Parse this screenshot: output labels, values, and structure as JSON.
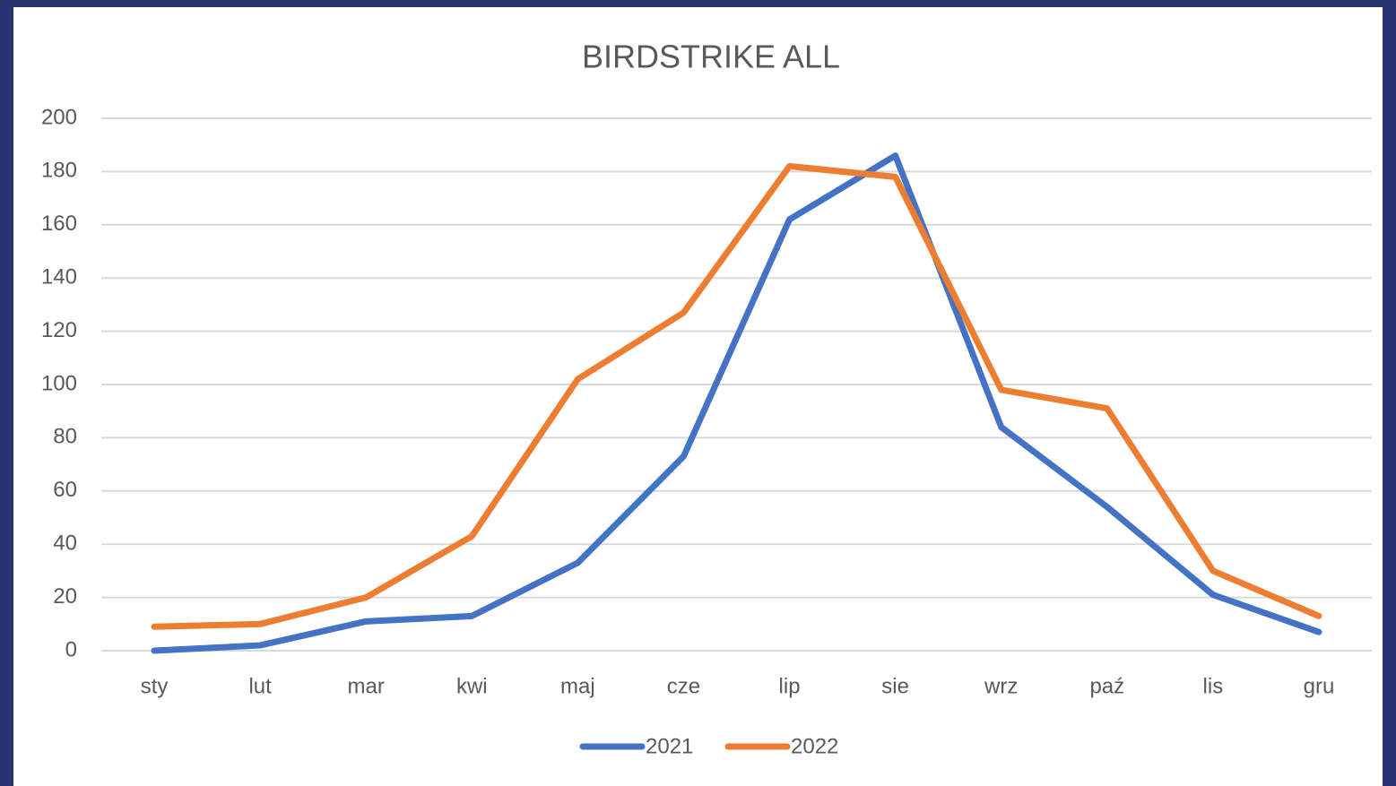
{
  "chart_data": {
    "type": "line",
    "title": "BIRDSTRIKE ALL",
    "categories": [
      "sty",
      "lut",
      "mar",
      "kwi",
      "maj",
      "cze",
      "lip",
      "sie",
      "wrz",
      "paź",
      "lis",
      "gru"
    ],
    "series": [
      {
        "name": "2021",
        "color": "#4472c4",
        "values": [
          0,
          2,
          11,
          13,
          33,
          73,
          162,
          186,
          84,
          54,
          21,
          7
        ]
      },
      {
        "name": "2022",
        "color": "#ed7d31",
        "values": [
          9,
          10,
          20,
          43,
          102,
          127,
          182,
          178,
          98,
          91,
          30,
          13
        ]
      }
    ],
    "ylim": [
      0,
      200
    ],
    "yticks": [
      0,
      20,
      40,
      60,
      80,
      100,
      120,
      140,
      160,
      180,
      200
    ],
    "grid": true,
    "legend": "bottom"
  }
}
